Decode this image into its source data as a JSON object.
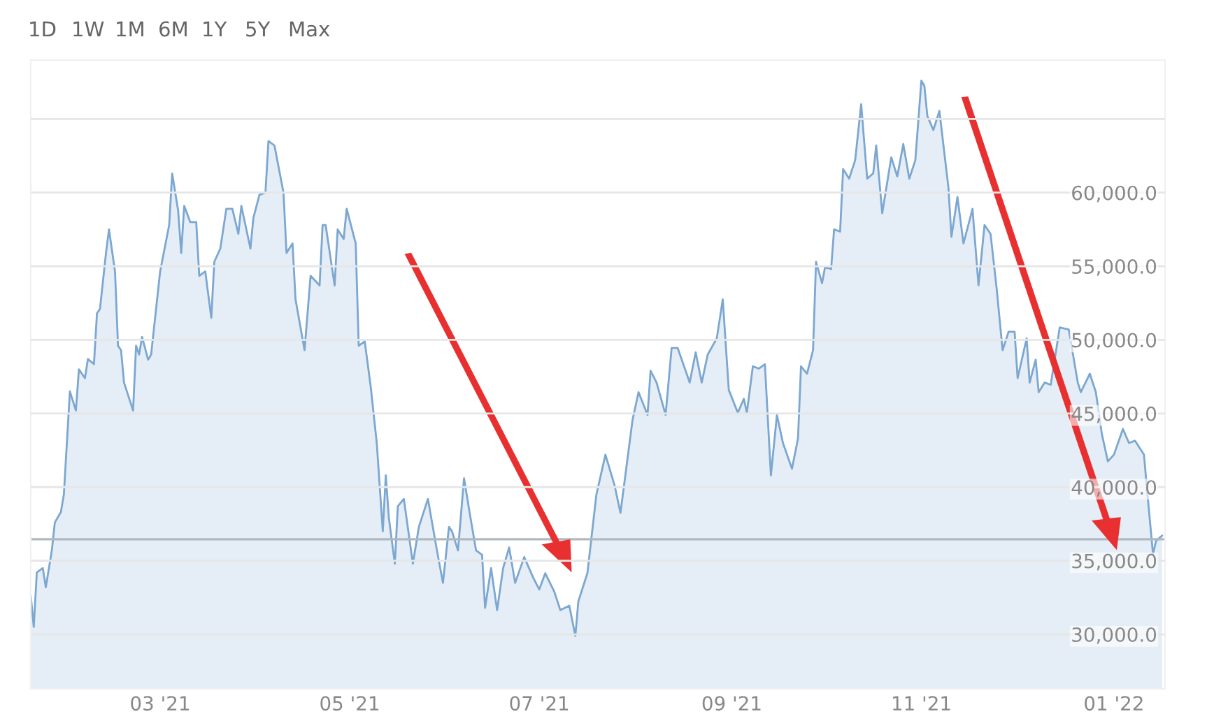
{
  "chart_data": {
    "type": "area",
    "annotations": [
      "1D",
      "1W",
      "1M",
      "6M",
      "1Y",
      "5Y",
      "Max"
    ],
    "x": [
      "2021-01-20",
      "2021-01-21",
      "2021-01-22",
      "2021-01-24",
      "2021-01-25",
      "2021-01-27",
      "2021-01-28",
      "2021-01-30",
      "2021-01-31",
      "2021-02-02",
      "2021-02-04",
      "2021-02-05",
      "2021-02-07",
      "2021-02-08",
      "2021-02-10",
      "2021-02-11",
      "2021-02-12",
      "2021-02-14",
      "2021-02-15",
      "2021-02-17",
      "2021-02-18",
      "2021-02-19",
      "2021-02-20",
      "2021-02-23",
      "2021-02-24",
      "2021-02-25",
      "2021-02-26",
      "2021-02-28",
      "2021-03-01",
      "2021-03-04",
      "2021-03-07",
      "2021-03-08",
      "2021-03-10",
      "2021-03-11",
      "2021-03-12",
      "2021-03-14",
      "2021-03-16",
      "2021-03-17",
      "2021-03-19",
      "2021-03-21",
      "2021-03-22",
      "2021-03-24",
      "2021-03-26",
      "2021-03-28",
      "2021-03-30",
      "2021-03-31",
      "2021-04-03",
      "2021-04-04",
      "2021-04-06",
      "2021-04-08",
      "2021-04-09",
      "2021-04-11",
      "2021-04-14",
      "2021-04-15",
      "2021-04-17",
      "2021-04-18",
      "2021-04-21",
      "2021-04-23",
      "2021-04-26",
      "2021-04-27",
      "2021-04-28",
      "2021-05-01",
      "2021-05-02",
      "2021-05-04",
      "2021-05-05",
      "2021-05-08",
      "2021-05-09",
      "2021-05-11",
      "2021-05-13",
      "2021-05-15",
      "2021-05-17",
      "2021-05-18",
      "2021-05-19",
      "2021-05-21",
      "2021-05-22",
      "2021-05-24",
      "2021-05-27",
      "2021-05-29",
      "2021-06-01",
      "2021-06-04",
      "2021-06-06",
      "2021-06-08",
      "2021-06-09",
      "2021-06-11",
      "2021-06-13",
      "2021-06-15",
      "2021-06-17",
      "2021-06-19",
      "2021-06-20",
      "2021-06-22",
      "2021-06-24",
      "2021-06-26",
      "2021-06-28",
      "2021-06-30",
      "2021-07-03",
      "2021-07-06",
      "2021-07-08",
      "2021-07-10",
      "2021-07-13",
      "2021-07-15",
      "2021-07-18",
      "2021-07-20",
      "2021-07-21",
      "2021-07-24",
      "2021-07-27",
      "2021-07-30",
      "2021-08-02",
      "2021-08-04",
      "2021-08-06",
      "2021-08-08",
      "2021-08-10",
      "2021-08-13",
      "2021-08-14",
      "2021-08-16",
      "2021-08-19",
      "2021-08-21",
      "2021-08-23",
      "2021-08-26",
      "2021-08-27",
      "2021-08-29",
      "2021-08-31",
      "2021-09-02",
      "2021-09-05",
      "2021-09-07",
      "2021-09-09",
      "2021-09-12",
      "2021-09-14",
      "2021-09-15",
      "2021-09-17",
      "2021-09-19",
      "2021-09-21",
      "2021-09-23",
      "2021-09-25",
      "2021-09-27",
      "2021-09-30",
      "2021-10-02",
      "2021-10-03",
      "2021-10-05",
      "2021-10-07",
      "2021-10-08",
      "2021-10-10",
      "2021-10-11",
      "2021-10-13",
      "2021-10-14",
      "2021-10-16",
      "2021-10-17",
      "2021-10-19",
      "2021-10-21",
      "2021-10-23",
      "2021-10-25",
      "2021-10-27",
      "2021-10-28",
      "2021-10-30",
      "2021-11-02",
      "2021-11-04",
      "2021-11-06",
      "2021-11-08",
      "2021-11-10",
      "2021-11-12",
      "2021-11-13",
      "2021-11-14",
      "2021-11-16",
      "2021-11-18",
      "2021-11-21",
      "2021-11-22",
      "2021-11-24",
      "2021-11-26",
      "2021-11-28",
      "2021-11-29",
      "2021-12-01",
      "2021-12-03",
      "2021-12-05",
      "2021-12-07",
      "2021-12-09",
      "2021-12-11",
      "2021-12-13",
      "2021-12-14",
      "2021-12-17",
      "2021-12-18",
      "2021-12-20",
      "2021-12-21",
      "2021-12-23",
      "2021-12-25",
      "2021-12-28",
      "2021-12-31",
      "2022-01-03",
      "2022-01-04",
      "2022-01-07",
      "2022-01-09",
      "2022-01-11",
      "2022-01-13",
      "2022-01-15",
      "2022-01-18",
      "2022-01-20",
      "2022-01-22",
      "2022-01-25",
      "2022-01-26",
      "2022-01-28",
      "2022-01-29",
      "2022-01-31"
    ],
    "series": [
      {
        "color": "#7ba7d1",
        "values": [
          32600,
          30500,
          34200,
          34500,
          33200,
          35700,
          37600,
          38300,
          39500,
          46500,
          45200,
          48000,
          47400,
          48700,
          48350,
          51800,
          52100,
          55900,
          57500,
          54650,
          49600,
          49300,
          47100,
          45200,
          49600,
          49000,
          50200,
          48650,
          49000,
          54650,
          57800,
          61300,
          58750,
          55900,
          59100,
          58000,
          58000,
          54350,
          54650,
          51500,
          55300,
          56200,
          58900,
          58900,
          57200,
          59100,
          56200,
          58300,
          59850,
          60000,
          63500,
          63200,
          60000,
          55900,
          56550,
          52750,
          49300,
          54350,
          53700,
          57800,
          57800,
          53700,
          57500,
          56850,
          58900,
          56550,
          49600,
          49900,
          46800,
          43000,
          37000,
          40800,
          37950,
          34800,
          38700,
          39200,
          34800,
          37300,
          39200,
          35700,
          33500,
          37300,
          37000,
          35700,
          40600,
          38100,
          35700,
          35400,
          31800,
          34500,
          31650,
          34500,
          35900,
          33500,
          35250,
          33850,
          33050,
          34150,
          32900,
          31650,
          31950,
          29900,
          32250,
          34150,
          39500,
          42200,
          40150,
          38250,
          41400,
          44550,
          46450,
          44900,
          47900,
          47100,
          44900,
          49450,
          49450,
          47700,
          47100,
          49150,
          47100,
          49000,
          50100,
          52750,
          46600,
          45050,
          46000,
          45050,
          48200,
          48050,
          48350,
          40800,
          44900,
          43000,
          41250,
          43300,
          48200,
          47700,
          49300,
          55300,
          53850,
          54950,
          54800,
          57500,
          57350,
          61600,
          60950,
          62200,
          66000,
          60950,
          61300,
          63200,
          58600,
          62400,
          61100,
          63300,
          60950,
          62200,
          67600,
          67250,
          65200,
          64250,
          65550,
          60350,
          57000,
          59700,
          56550,
          58100,
          58900,
          53700,
          57800,
          57200,
          53550,
          49300,
          50550,
          50550,
          47400,
          50100,
          47100,
          48650,
          46450,
          47100,
          46950,
          50850,
          50700,
          47100,
          46450,
          47700,
          46450,
          43600,
          41750,
          42200,
          43950,
          43000,
          43150,
          42200,
          39850,
          35450,
          36350,
          36700
        ]
      }
    ],
    "xlim": [
      "2021-01-20",
      "2022-02-01"
    ],
    "xticks": [
      {
        "value": "2021-03-04",
        "label": "03 '21"
      },
      {
        "value": "2021-05-06",
        "label": "05 '21"
      },
      {
        "value": "2021-07-08",
        "label": "07 '21"
      },
      {
        "value": "2021-09-10",
        "label": "09 '21"
      },
      {
        "value": "2021-11-12",
        "label": "11 '21"
      },
      {
        "value": "2022-01-15",
        "label": "01 '22"
      }
    ],
    "ylim": [
      26300,
      69000
    ],
    "yticks": [
      {
        "value": 30000,
        "label": "30,000.0"
      },
      {
        "value": 35000,
        "label": "35,000.0"
      },
      {
        "value": 40000,
        "label": "40,000.0"
      },
      {
        "value": 45000,
        "label": "45,000.0"
      },
      {
        "value": 50000,
        "label": "50,000.0"
      },
      {
        "value": 55000,
        "label": "55,000.0"
      },
      {
        "value": 60000,
        "label": "60,000.0"
      },
      {
        "value": 65000,
        "label": null
      }
    ],
    "ref_lines": [
      {
        "axis": "y",
        "value": 36460,
        "color": "#b0b8c0"
      }
    ],
    "grid": "y"
  }
}
